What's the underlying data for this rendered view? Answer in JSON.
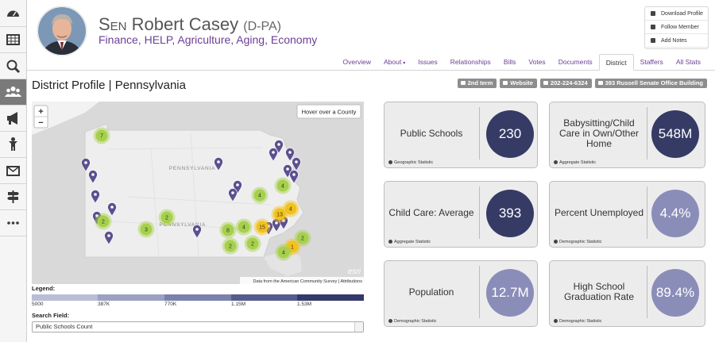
{
  "header": {
    "honorific": "Sen",
    "name": "Robert Casey",
    "party": "(D-PA)",
    "committees": "Finance, HELP, Agriculture, Aging, Economy"
  },
  "actions": [
    "Download Profile",
    "Follow Member",
    "Add Notes"
  ],
  "tabs": [
    "Overview",
    "About",
    "Issues",
    "Relationships",
    "Bills",
    "Votes",
    "Documents",
    "District",
    "Staffers",
    "All Stats"
  ],
  "page_title": "District Profile | Pennsylvania",
  "badges": [
    "2nd term",
    "Website",
    "202-224-6324",
    "393 Russell Senate Office Building"
  ],
  "map": {
    "zoom_in": "+",
    "zoom_out": "−",
    "hover_hint": "Hover over a County",
    "state_labels": [
      "PENNSYLVANIA",
      "PENNSYLVANIA"
    ],
    "clusters": [
      7,
      4,
      4,
      4,
      2,
      3,
      2,
      8,
      4,
      15,
      13,
      2,
      2,
      2,
      1,
      4
    ],
    "logo": "esri",
    "attribution": "Data from the American Community Survey | Attributions"
  },
  "legend": {
    "title": "Legend:",
    "labels": [
      "5000",
      "387K",
      "770K",
      "1.15M",
      "1.53M"
    ]
  },
  "search": {
    "label": "Search Field:",
    "selected": "Public Schools Count"
  },
  "cards": [
    {
      "label": "Public Schools",
      "value": "230",
      "footer": "Geographic Statistic"
    },
    {
      "label": "Babysitting/Child Care in Own/Other Home",
      "value": "548M",
      "footer": "Aggregate Statistic"
    },
    {
      "label": "Child Care: Average",
      "value": "393",
      "footer": "Aggregate Statistic"
    },
    {
      "label": "Percent Unemployed",
      "value": "4.4%",
      "footer": "Demographic Statistic"
    },
    {
      "label": "Population",
      "value": "12.7M",
      "footer": "Demographic Statistic"
    },
    {
      "label": "High School Graduation Rate",
      "value": "89.4%",
      "footer": "Demographic Statistic"
    }
  ]
}
